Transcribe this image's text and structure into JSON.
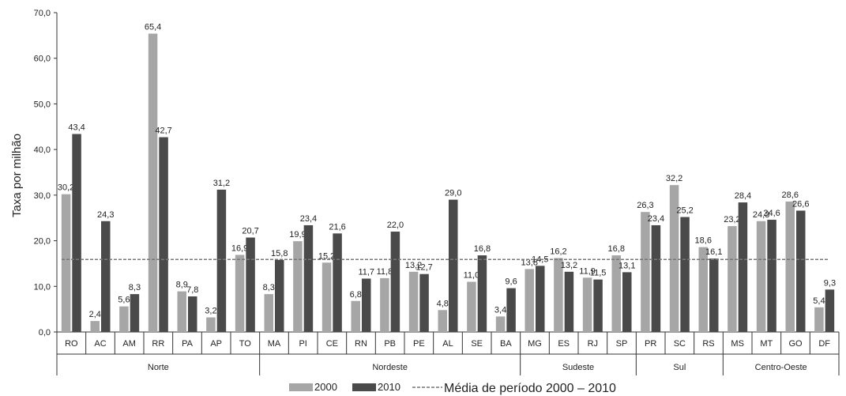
{
  "chart_data": {
    "type": "bar",
    "ylabel": "Taxa por milhão",
    "ylim": [
      0,
      70
    ],
    "yticks": [
      "0,0",
      "10,0",
      "20,0",
      "30,0",
      "40,0",
      "50,0",
      "60,0",
      "70,0"
    ],
    "categories": [
      "RO",
      "AC",
      "AM",
      "RR",
      "PA",
      "AP",
      "TO",
      "MA",
      "PI",
      "CE",
      "RN",
      "PB",
      "PE",
      "AL",
      "SE",
      "BA",
      "MG",
      "ES",
      "RJ",
      "SP",
      "PR",
      "SC",
      "RS",
      "MS",
      "MT",
      "GO",
      "DF"
    ],
    "regions": [
      {
        "name": "Norte",
        "count": 7
      },
      {
        "name": "Nordeste",
        "count": 9
      },
      {
        "name": "Sudeste",
        "count": 4
      },
      {
        "name": "Sul",
        "count": 3
      },
      {
        "name": "Centro-Oeste",
        "count": 4
      }
    ],
    "series": [
      {
        "name": "2000",
        "color": "#a6a6a6",
        "values": [
          30.2,
          2.4,
          5.6,
          65.4,
          8.9,
          3.2,
          16.9,
          8.3,
          19.9,
          15.2,
          6.8,
          11.8,
          13.2,
          4.8,
          11.0,
          3.4,
          13.8,
          16.2,
          11.9,
          16.8,
          26.3,
          32.2,
          18.6,
          23.2,
          24.3,
          28.6,
          5.4
        ],
        "labels": [
          "30,2",
          "2,4",
          "5,6",
          "65,4",
          "8,9",
          "3,2",
          "16,9",
          "8,3",
          "19,9",
          "15,2",
          "6,8",
          "11,8",
          "13,2",
          "4,8",
          "11,0",
          "3,4",
          "13,8",
          "16,2",
          "11,9",
          "16,8",
          "26,3",
          "32,2",
          "18,6",
          "23,2",
          "24,3",
          "28,6",
          "5,4"
        ]
      },
      {
        "name": "2010",
        "color": "#4a4a4a",
        "values": [
          43.4,
          24.3,
          8.3,
          42.7,
          7.8,
          31.2,
          20.7,
          15.8,
          23.4,
          21.6,
          11.7,
          22.0,
          12.7,
          29.0,
          16.8,
          9.6,
          14.5,
          13.2,
          11.5,
          13.1,
          23.4,
          25.2,
          16.1,
          28.4,
          24.6,
          26.6,
          9.3
        ],
        "labels": [
          "43,4",
          "24,3",
          "8,3",
          "42,7",
          "7,8",
          "31,2",
          "20,7",
          "15,8",
          "23,4",
          "21,6",
          "11,7",
          "22,0",
          "12,7",
          "29,0",
          "16,8",
          "9,6",
          "14,5",
          "13,2",
          "11,5",
          "13,1",
          "23,4",
          "25,2",
          "16,1",
          "28,4",
          "24,6",
          "26,6",
          "9,3"
        ]
      }
    ],
    "reference_line": {
      "name": "Média de período 2000 – 2010",
      "value": 15.9,
      "color": "#777777",
      "style": "dashed"
    },
    "legend": {
      "position": "bottom",
      "items": [
        "2000",
        "2010",
        "Média de período 2000 – 2010"
      ]
    },
    "grid": false
  }
}
